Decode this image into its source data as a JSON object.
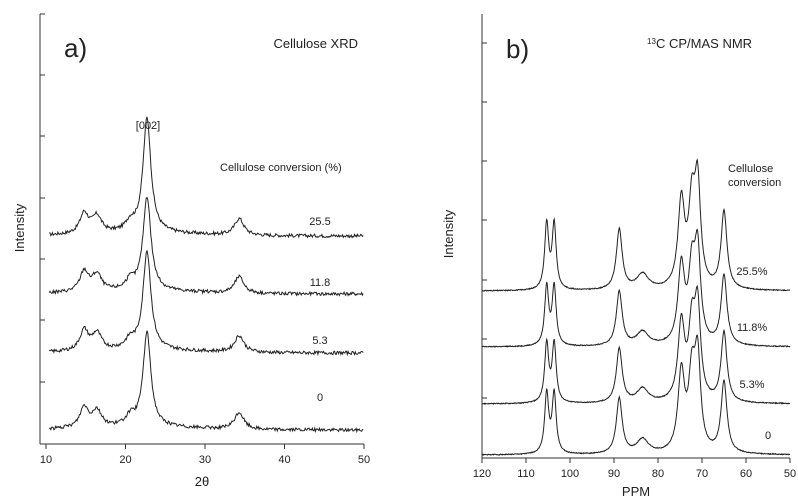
{
  "chart_data": [
    {
      "type": "line",
      "panel_label": "a)",
      "title": "Cellulose XRD",
      "xlabel": "2θ",
      "ylabel": "Intensity",
      "xlim": [
        10,
        50
      ],
      "xticks": [
        10,
        20,
        30,
        40,
        50
      ],
      "peak_label": "[002]",
      "legend_title": "Cellulose conversion (%)",
      "series": [
        {
          "name": "25.5"
        },
        {
          "name": "11.8"
        },
        {
          "name": "5.3"
        },
        {
          "name": "0"
        }
      ],
      "peaks": [
        {
          "x": 14.8,
          "h": 0.11,
          "w": 0.65
        },
        {
          "x": 16.4,
          "h": 0.09,
          "w": 0.7
        },
        {
          "x": 20.6,
          "h": 0.05,
          "w": 0.7
        },
        {
          "x": 22.7,
          "h": 0.62,
          "w": 0.6
        },
        {
          "x": 34.3,
          "h": 0.09,
          "w": 0.7
        }
      ]
    },
    {
      "type": "line",
      "panel_label": "b)",
      "title_sup": "13",
      "title": "C CP/MAS NMR",
      "xlabel": "PPM",
      "ylabel": "Intensity",
      "xlim": [
        120,
        50
      ],
      "xticks": [
        120,
        110,
        100,
        90,
        80,
        70,
        60,
        50
      ],
      "legend_title": [
        "Cellulose",
        "conversion"
      ],
      "series": [
        {
          "name": "25.5%"
        },
        {
          "name": "11.8%"
        },
        {
          "name": "5.3%"
        },
        {
          "name": "0"
        }
      ],
      "peaks": [
        {
          "x": 105.3,
          "h": 0.42,
          "w": 0.55
        },
        {
          "x": 103.6,
          "h": 0.42,
          "w": 0.55
        },
        {
          "x": 88.8,
          "h": 0.39,
          "w": 0.8
        },
        {
          "x": 83.5,
          "h": 0.1,
          "w": 1.6
        },
        {
          "x": 74.7,
          "h": 0.55,
          "w": 0.9
        },
        {
          "x": 72.3,
          "h": 0.5,
          "w": 0.9
        },
        {
          "x": 71.0,
          "h": 0.63,
          "w": 0.8
        },
        {
          "x": 65.0,
          "h": 0.5,
          "w": 0.8
        }
      ]
    }
  ]
}
